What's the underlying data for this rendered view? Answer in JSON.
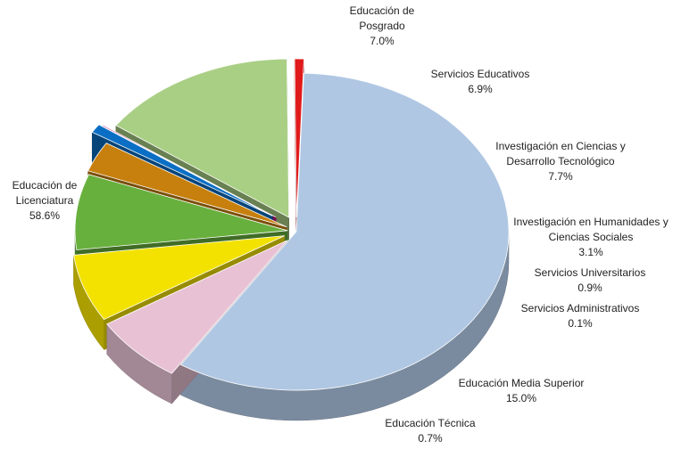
{
  "chart_data": {
    "type": "pie",
    "title": "",
    "style": "3d-exploded",
    "slices": [
      {
        "label_lines": [
          "Educación de",
          "Licenciatura"
        ],
        "value": 58.6,
        "value_label": "58.6%",
        "color": "#b0c7e3"
      },
      {
        "label_lines": [
          "Educación de",
          "Posgrado"
        ],
        "value": 7.0,
        "value_label": "7.0%",
        "color": "#e8c1d4"
      },
      {
        "label_lines": [
          "Servicios Educativos"
        ],
        "value": 6.9,
        "value_label": "6.9%",
        "color": "#f3e200"
      },
      {
        "label_lines": [
          "Investigación en Ciencias y",
          "Desarrollo Tecnológico"
        ],
        "value": 7.7,
        "value_label": "7.7%",
        "color": "#68b03e"
      },
      {
        "label_lines": [
          "Investigación en Humanidades y",
          "Ciencias Sociales"
        ],
        "value": 3.1,
        "value_label": "3.1%",
        "color": "#c7800e"
      },
      {
        "label_lines": [
          "Servicios Universitarios"
        ],
        "value": 0.9,
        "value_label": "0.9%",
        "color": "#0a6fc4"
      },
      {
        "label_lines": [
          "Servicios Administrativos"
        ],
        "value": 0.1,
        "value_label": "0.1%",
        "color": "#c0107a"
      },
      {
        "label_lines": [
          "Educación Media Superior"
        ],
        "value": 15.0,
        "value_label": "15.0%",
        "color": "#a9cf85"
      },
      {
        "label_lines": [
          "Educación Técnica"
        ],
        "value": 0.7,
        "value_label": "0.7%",
        "color": "#e01a1a"
      }
    ]
  }
}
